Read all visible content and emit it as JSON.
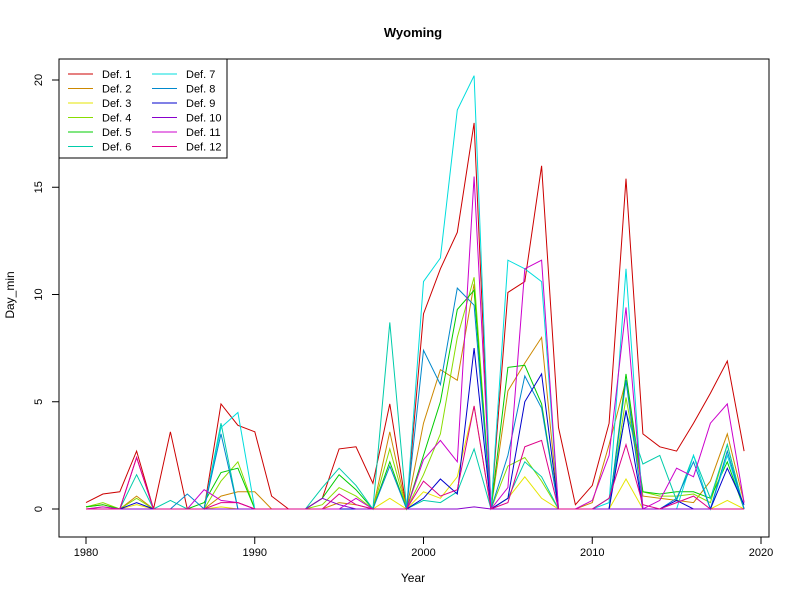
{
  "chart_data": {
    "type": "line",
    "title": "Wyoming",
    "xlabel": "Year",
    "ylabel": "Day_min",
    "xlim": [
      1980,
      2020
    ],
    "ylim": [
      0,
      20
    ],
    "xticks": [
      1980,
      1990,
      2000,
      2010,
      2020
    ],
    "yticks": [
      0,
      5,
      10,
      15,
      20
    ],
    "grid": false,
    "legend_position": "top-left",
    "x": [
      1980,
      1981,
      1982,
      1983,
      1984,
      1985,
      1986,
      1987,
      1988,
      1989,
      1990,
      1991,
      1992,
      1993,
      1994,
      1995,
      1996,
      1997,
      1998,
      1999,
      2000,
      2001,
      2002,
      2003,
      2004,
      2005,
      2006,
      2007,
      2008,
      2009,
      2010,
      2011,
      2012,
      2013,
      2014,
      2015,
      2016,
      2017,
      2018,
      2019
    ],
    "series": [
      {
        "name": "Def. 1",
        "color": "#cc0000",
        "values": [
          0.3,
          0.7,
          0.8,
          2.7,
          0.0,
          3.6,
          0.0,
          0.0,
          4.9,
          3.9,
          3.6,
          0.6,
          0.0,
          0.0,
          0.5,
          2.8,
          2.9,
          1.2,
          4.9,
          0.0,
          9.1,
          11.2,
          12.9,
          18.0,
          0.0,
          10.1,
          10.6,
          16.0,
          3.8,
          0.2,
          1.1,
          4.0,
          15.4,
          3.5,
          2.9,
          2.7,
          4.0,
          5.4,
          6.9,
          2.7
        ]
      },
      {
        "name": "Def. 2",
        "color": "#cc8800",
        "values": [
          0.1,
          0.2,
          0.0,
          0.6,
          0.0,
          0.0,
          0.0,
          0.0,
          0.6,
          0.8,
          0.8,
          0.0,
          0.0,
          0.0,
          0.0,
          0.3,
          0.2,
          0.0,
          3.6,
          0.0,
          4.0,
          6.5,
          6.0,
          10.5,
          0.0,
          5.5,
          6.8,
          8.0,
          0.0,
          0.0,
          0.3,
          3.0,
          6.0,
          0.6,
          0.5,
          0.4,
          0.3,
          1.3,
          3.5,
          0.3
        ]
      },
      {
        "name": "Def. 3",
        "color": "#e6e600",
        "values": [
          0.0,
          0.1,
          0.0,
          0.2,
          0.0,
          0.0,
          0.0,
          0.0,
          0.1,
          0.0,
          0.0,
          0.0,
          0.0,
          0.0,
          0.0,
          0.0,
          0.0,
          0.0,
          0.5,
          0.0,
          0.8,
          0.5,
          1.5,
          4.8,
          0.0,
          0.5,
          1.5,
          0.5,
          0.0,
          0.0,
          0.0,
          0.0,
          1.4,
          0.0,
          0.0,
          0.0,
          0.0,
          0.0,
          0.4,
          0.0
        ]
      },
      {
        "name": "Def. 4",
        "color": "#88dd00",
        "values": [
          0.1,
          0.3,
          0.0,
          0.5,
          0.0,
          0.0,
          0.0,
          0.0,
          1.3,
          2.2,
          0.0,
          0.0,
          0.0,
          0.0,
          0.2,
          1.0,
          0.6,
          0.0,
          2.8,
          0.0,
          1.6,
          3.5,
          8.0,
          10.8,
          0.0,
          2.0,
          2.4,
          1.3,
          0.0,
          0.0,
          0.0,
          0.0,
          5.2,
          0.8,
          0.6,
          0.6,
          0.7,
          0.3,
          3.0,
          0.0
        ]
      },
      {
        "name": "Def. 5",
        "color": "#00cc00",
        "values": [
          0.1,
          0.2,
          0.0,
          0.0,
          0.0,
          0.0,
          0.0,
          0.3,
          1.7,
          1.9,
          0.0,
          0.0,
          0.0,
          0.0,
          0.5,
          1.6,
          0.9,
          0.0,
          2.2,
          0.0,
          2.5,
          5.0,
          9.3,
          10.2,
          0.0,
          6.6,
          6.7,
          4.9,
          0.0,
          0.0,
          0.0,
          0.0,
          6.3,
          0.8,
          0.7,
          0.8,
          0.8,
          0.5,
          2.2,
          0.0
        ]
      },
      {
        "name": "Def. 6",
        "color": "#00ccaa",
        "values": [
          0.0,
          0.0,
          0.0,
          1.6,
          0.0,
          0.4,
          0.0,
          0.0,
          4.0,
          0.0,
          0.0,
          0.0,
          0.0,
          0.0,
          1.0,
          1.9,
          1.1,
          0.0,
          8.7,
          0.0,
          0.4,
          0.3,
          0.8,
          2.8,
          0.0,
          0.5,
          2.2,
          1.5,
          0.0,
          0.0,
          0.0,
          0.5,
          4.5,
          2.1,
          2.5,
          0.4,
          2.5,
          0.5,
          3.0,
          0.0
        ]
      },
      {
        "name": "Def. 7",
        "color": "#00dddd",
        "values": [
          0.0,
          0.0,
          0.0,
          0.0,
          0.0,
          0.0,
          0.0,
          0.0,
          3.8,
          4.5,
          0.0,
          0.0,
          0.0,
          0.0,
          0.0,
          0.0,
          0.0,
          0.0,
          0.0,
          0.0,
          10.6,
          11.7,
          18.6,
          20.2,
          0.0,
          11.6,
          11.2,
          10.6,
          0.0,
          0.0,
          0.0,
          0.3,
          11.2,
          0.0,
          0.0,
          0.0,
          2.5,
          0.0,
          2.5,
          0.0
        ]
      },
      {
        "name": "Def. 8",
        "color": "#0088cc",
        "values": [
          0.0,
          0.0,
          0.0,
          0.0,
          0.0,
          0.0,
          0.7,
          0.0,
          3.5,
          0.0,
          0.0,
          0.0,
          0.0,
          0.0,
          0.0,
          0.0,
          0.0,
          0.0,
          2.0,
          0.0,
          7.4,
          5.8,
          10.3,
          9.5,
          0.0,
          2.5,
          6.2,
          4.7,
          0.0,
          0.0,
          0.0,
          0.0,
          6.0,
          0.0,
          0.0,
          0.5,
          2.2,
          0.0,
          2.7,
          0.0
        ]
      },
      {
        "name": "Def. 9",
        "color": "#0000cc",
        "values": [
          0.0,
          0.0,
          0.0,
          0.3,
          0.0,
          0.0,
          0.0,
          0.0,
          0.0,
          0.0,
          0.0,
          0.0,
          0.0,
          0.0,
          0.0,
          0.0,
          0.0,
          0.0,
          0.0,
          0.0,
          0.5,
          1.4,
          0.7,
          7.5,
          0.0,
          0.5,
          5.0,
          6.3,
          0.0,
          0.0,
          0.0,
          0.0,
          4.6,
          0.0,
          0.0,
          0.4,
          0.0,
          0.0,
          1.9,
          0.2
        ]
      },
      {
        "name": "Def. 10",
        "color": "#8800cc",
        "values": [
          0.0,
          0.0,
          0.0,
          0.0,
          0.0,
          0.0,
          0.0,
          0.0,
          0.0,
          0.0,
          0.0,
          0.0,
          0.0,
          0.0,
          0.5,
          0.2,
          0.0,
          0.0,
          0.0,
          0.0,
          0.0,
          0.0,
          0.0,
          0.1,
          0.0,
          0.0,
          0.0,
          0.0,
          0.0,
          0.0,
          0.0,
          0.0,
          0.0,
          0.0,
          0.0,
          0.0,
          0.0,
          0.0,
          0.0,
          0.0
        ]
      },
      {
        "name": "Def. 11",
        "color": "#cc00cc",
        "values": [
          0.0,
          0.1,
          0.0,
          2.4,
          0.0,
          0.0,
          0.0,
          0.9,
          0.4,
          0.3,
          0.0,
          0.0,
          0.0,
          0.0,
          0.0,
          0.0,
          0.5,
          0.0,
          0.0,
          0.0,
          2.3,
          3.2,
          2.2,
          15.5,
          0.0,
          1.0,
          11.2,
          11.6,
          0.0,
          0.0,
          0.4,
          2.5,
          9.4,
          0.0,
          0.4,
          1.9,
          1.5,
          4.0,
          4.9,
          0.3
        ]
      },
      {
        "name": "Def. 12",
        "color": "#dd0088",
        "values": [
          0.0,
          0.0,
          0.0,
          2.4,
          0.0,
          0.0,
          0.0,
          0.0,
          0.3,
          0.3,
          0.0,
          0.0,
          0.0,
          0.0,
          0.0,
          0.7,
          0.2,
          0.0,
          0.0,
          0.0,
          1.3,
          0.6,
          0.9,
          4.8,
          0.0,
          0.3,
          2.9,
          3.2,
          0.0,
          0.0,
          0.0,
          0.5,
          3.0,
          0.2,
          0.0,
          0.3,
          0.6,
          0.0,
          0.0,
          0.0
        ]
      }
    ]
  }
}
